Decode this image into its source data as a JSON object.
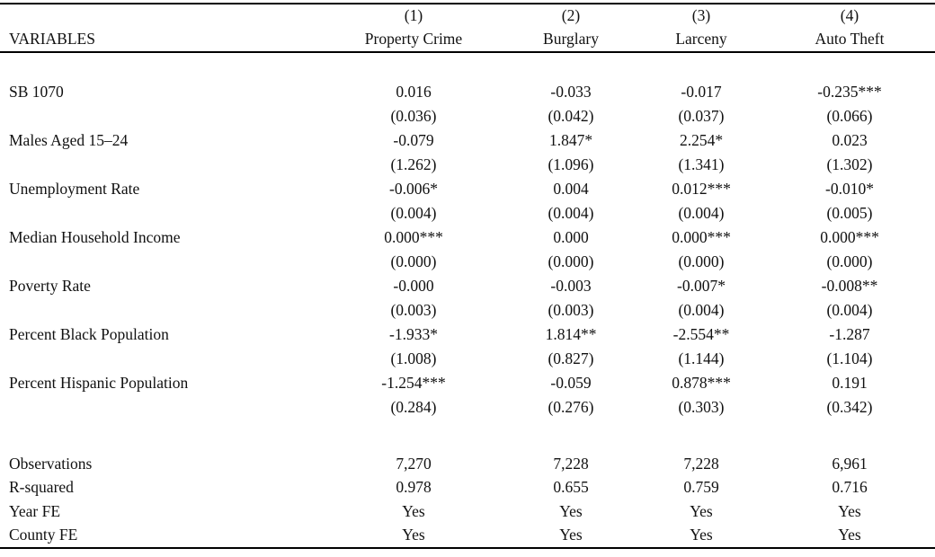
{
  "table": {
    "variables_header": "VARIABLES",
    "columns": [
      {
        "number": "(1)",
        "label": "Property Crime"
      },
      {
        "number": "(2)",
        "label": "Burglary"
      },
      {
        "number": "(3)",
        "label": "Larceny"
      },
      {
        "number": "(4)",
        "label": "Auto Theft"
      }
    ],
    "rows": [
      {
        "label": "SB 1070",
        "coefs": [
          "0.016",
          "-0.033",
          "-0.017",
          "-0.235***"
        ],
        "ses": [
          "(0.036)",
          "(0.042)",
          "(0.037)",
          "(0.066)"
        ]
      },
      {
        "label": "Males Aged 15–24",
        "coefs": [
          "-0.079",
          "1.847*",
          "2.254*",
          "0.023"
        ],
        "ses": [
          "(1.262)",
          "(1.096)",
          "(1.341)",
          "(1.302)"
        ]
      },
      {
        "label": "Unemployment Rate",
        "coefs": [
          "-0.006*",
          "0.004",
          "0.012***",
          "-0.010*"
        ],
        "ses": [
          "(0.004)",
          "(0.004)",
          "(0.004)",
          "(0.005)"
        ]
      },
      {
        "label": "Median Household Income",
        "coefs": [
          "0.000***",
          "0.000",
          "0.000***",
          "0.000***"
        ],
        "ses": [
          "(0.000)",
          "(0.000)",
          "(0.000)",
          "(0.000)"
        ]
      },
      {
        "label": "Poverty Rate",
        "coefs": [
          "-0.000",
          "-0.003",
          "-0.007*",
          "-0.008**"
        ],
        "ses": [
          "(0.003)",
          "(0.003)",
          "(0.004)",
          "(0.004)"
        ]
      },
      {
        "label": "Percent Black Population",
        "coefs": [
          "-1.933*",
          "1.814**",
          "-2.554**",
          "-1.287"
        ],
        "ses": [
          "(1.008)",
          "(0.827)",
          "(1.144)",
          "(1.104)"
        ]
      },
      {
        "label": "Percent Hispanic Population",
        "coefs": [
          "-1.254***",
          "-0.059",
          "0.878***",
          "0.191"
        ],
        "ses": [
          "(0.284)",
          "(0.276)",
          "(0.303)",
          "(0.342)"
        ]
      }
    ],
    "stats": [
      {
        "label": "Observations",
        "values": [
          "7,270",
          "7,228",
          "7,228",
          "6,961"
        ]
      },
      {
        "label": "R-squared",
        "values": [
          "0.978",
          "0.655",
          "0.759",
          "0.716"
        ]
      },
      {
        "label": "Year FE",
        "values": [
          "Yes",
          "Yes",
          "Yes",
          "Yes"
        ]
      },
      {
        "label": "County FE",
        "values": [
          "Yes",
          "Yes",
          "Yes",
          "Yes"
        ]
      }
    ]
  },
  "colors": {
    "text": "#111111",
    "rule": "#000000",
    "background": "#ffffff"
  }
}
